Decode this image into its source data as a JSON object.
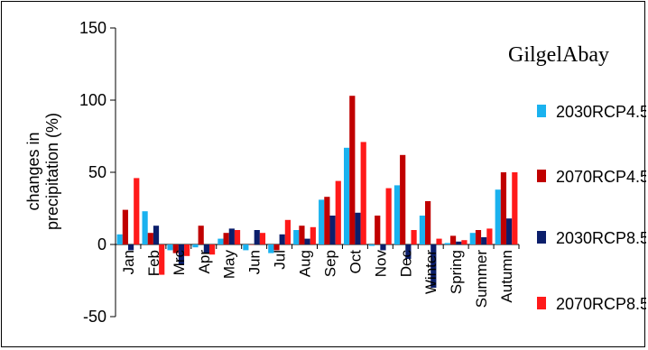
{
  "chart_data": {
    "type": "bar",
    "title": "GilgelAbay",
    "ylabel": "changes in precipitation (%)",
    "xlabel": "",
    "ylim": [
      -50,
      150
    ],
    "yticks": [
      -50,
      0,
      50,
      100,
      150
    ],
    "grid": false,
    "legend_position": "right",
    "categories": [
      "Jan",
      "Feb",
      "Mrc",
      "Apr",
      "May",
      "Jun",
      "Jul",
      "Aug",
      "Sep",
      "Oct",
      "Nov",
      "Dec",
      "Winter",
      "Spring",
      "Summer",
      "Autumn"
    ],
    "series": [
      {
        "name": "2030RCP4.5",
        "color": "#1ab2ef",
        "values": [
          7,
          23,
          -4,
          -2,
          4,
          -4,
          -6,
          10,
          31,
          67,
          -1,
          41,
          20,
          1,
          8,
          38
        ]
      },
      {
        "name": "2070RCP4.5",
        "color": "#c00000",
        "values": [
          24,
          8,
          -6,
          13,
          8,
          0,
          -4,
          13,
          33,
          103,
          20,
          62,
          30,
          6,
          10,
          50
        ]
      },
      {
        "name": "2030RCP8.5",
        "color": "#0b1e6b",
        "values": [
          -4,
          13,
          -14,
          -6,
          11,
          10,
          7,
          4,
          20,
          22,
          -4,
          -10,
          -30,
          2,
          5,
          18
        ]
      },
      {
        "name": "2070RCP8.5",
        "color": "#ff1a1a",
        "values": [
          46,
          -21,
          -8,
          -7,
          10,
          8,
          17,
          12,
          44,
          71,
          39,
          10,
          4,
          3,
          11,
          50
        ]
      }
    ]
  }
}
